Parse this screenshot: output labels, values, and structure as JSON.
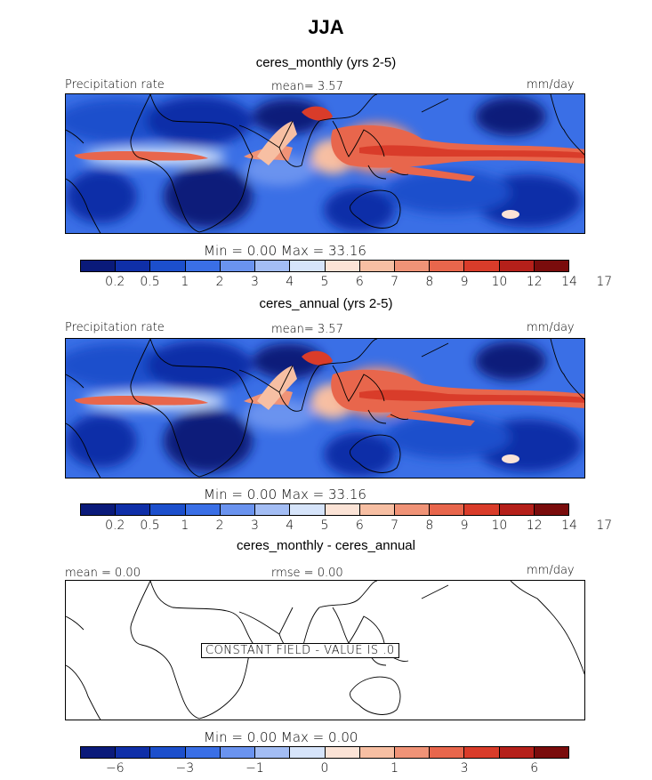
{
  "figure_title": "JJA",
  "colors": [
    "#0a1a7a",
    "#0f2fa8",
    "#1c4fcc",
    "#3a6fe6",
    "#6a93ef",
    "#a3bdf4",
    "#d6e4fa",
    "#fbe3d6",
    "#f7bfa3",
    "#f09377",
    "#e8664c",
    "#d93c2a",
    "#b5201a",
    "#7a0c0c"
  ],
  "panels": [
    {
      "title": "ceres_monthly (yrs 2-5)",
      "header_left": "Precipitation rate",
      "header_center": "mean=    3.57",
      "header_right": "mm/day",
      "stats": "Min =     0.00  Max =    33.16",
      "tick_labels": [
        "0.2",
        "0.5",
        "1",
        "2",
        "3",
        "4",
        "5",
        "6",
        "7",
        "8",
        "9",
        "10",
        "12",
        "14",
        "17"
      ]
    },
    {
      "title": "ceres_annual (yrs 2-5)",
      "header_left": "Precipitation rate",
      "header_center": "mean=    3.57",
      "header_right": "mm/day",
      "stats": "Min =     0.00  Max =    33.16",
      "tick_labels": [
        "0.2",
        "0.5",
        "1",
        "2",
        "3",
        "4",
        "5",
        "6",
        "7",
        "8",
        "9",
        "10",
        "12",
        "14",
        "17"
      ]
    },
    {
      "title": "ceres_monthly - ceres_annual",
      "header_left": "mean =    0.00",
      "header_center": "rmse =    0.00",
      "header_right": "mm/day",
      "stats": "Min =     0.00  Max =     0.00",
      "constant_note": "CONSTANT FIELD - VALUE IS .0",
      "tick_labels": [
        "−6",
        "−3",
        "−1",
        "0",
        "1",
        "3",
        "6"
      ]
    }
  ],
  "chart_data": [
    {
      "type": "heatmap",
      "title": "ceres_monthly (yrs 2-5)",
      "variable": "Precipitation rate",
      "units": "mm/day",
      "mean": 3.57,
      "min": 0.0,
      "max": 33.16,
      "contour_levels": [
        0.2,
        0.5,
        1,
        2,
        3,
        4,
        5,
        6,
        7,
        8,
        9,
        10,
        12,
        14,
        17
      ]
    },
    {
      "type": "heatmap",
      "title": "ceres_annual (yrs 2-5)",
      "variable": "Precipitation rate",
      "units": "mm/day",
      "mean": 3.57,
      "min": 0.0,
      "max": 33.16,
      "contour_levels": [
        0.2,
        0.5,
        1,
        2,
        3,
        4,
        5,
        6,
        7,
        8,
        9,
        10,
        12,
        14,
        17
      ]
    },
    {
      "type": "heatmap",
      "title": "ceres_monthly - ceres_annual",
      "units": "mm/day",
      "mean": 0.0,
      "rmse": 0.0,
      "min": 0.0,
      "max": 0.0,
      "constant_value": 0.0,
      "contour_levels": [
        -6,
        -3,
        -1,
        0,
        1,
        3,
        6
      ]
    }
  ]
}
